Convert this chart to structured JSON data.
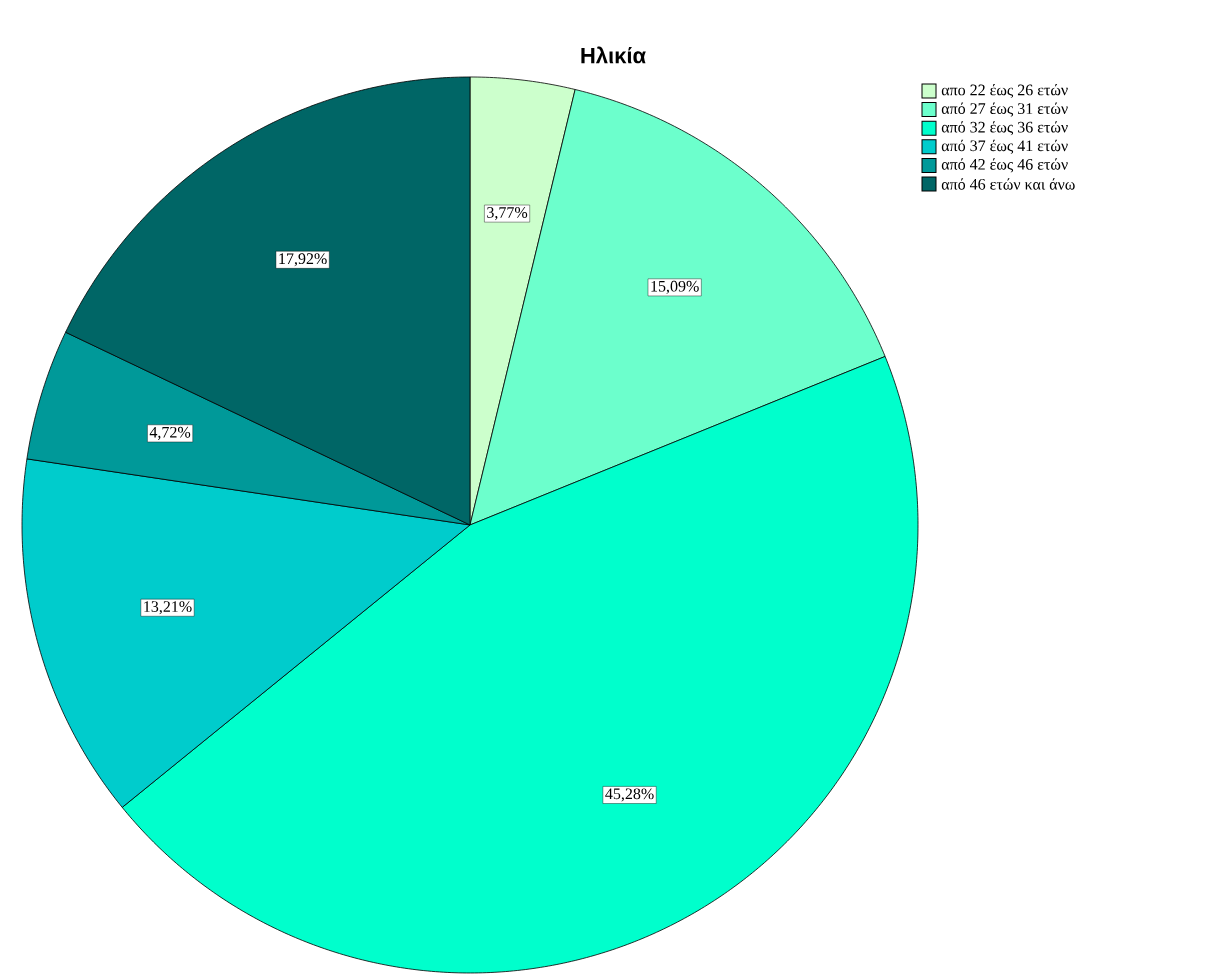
{
  "chart_data": {
    "type": "pie",
    "title": "Ηλικία",
    "categories": [
      "απο 22 έως 26 ετών",
      "από 27 έως 31 ετών",
      "από 32 έως 36 ετών",
      "από 37 έως 41 ετών",
      "από 42 έως 46 ετών",
      "από 46 ετών και άνω"
    ],
    "values": [
      3.77,
      15.09,
      45.28,
      13.21,
      4.72,
      17.92
    ],
    "value_labels": [
      "3,77%",
      "15,09%",
      "45,28%",
      "13,21%",
      "4,72%",
      "17,92%"
    ],
    "colors": [
      "#ccffcc",
      "#6cffcc",
      "#00ffcc",
      "#00cccc",
      "#009999",
      "#006666"
    ],
    "legend": "top right"
  }
}
